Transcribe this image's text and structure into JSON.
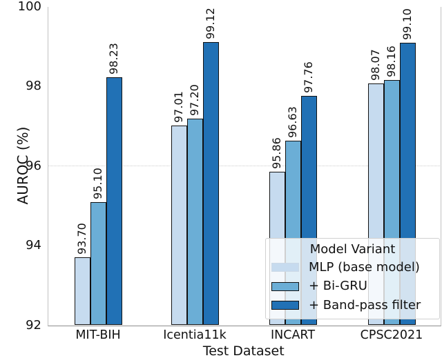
{
  "chart_data": {
    "type": "bar",
    "variant": "grouped-vertical",
    "title": "",
    "xlabel": "Test Dataset",
    "ylabel": "AUROC (%)",
    "categories": [
      "MIT-BIH",
      "Icentia11k",
      "INCART",
      "CPSC2021"
    ],
    "series": [
      {
        "name": "MLP (base model)",
        "color": "#c6dbef",
        "swatch_edge": "#ccd9e6",
        "values": [
          93.7,
          97.01,
          95.86,
          98.07
        ]
      },
      {
        "name": "+ Bi-GRU",
        "color": "#6baed6",
        "swatch_edge": "#111111",
        "values": [
          95.1,
          97.2,
          96.63,
          98.16
        ]
      },
      {
        "name": "+ Band-pass filter",
        "color": "#2171b5",
        "swatch_edge": "#111111",
        "values": [
          98.23,
          99.12,
          97.76,
          99.1
        ]
      }
    ],
    "value_labels": [
      [
        "93.70",
        "97.01",
        "95.86",
        "98.07"
      ],
      [
        "95.10",
        "97.20",
        "96.63",
        "98.16"
      ],
      [
        "98.23",
        "99.12",
        "97.76",
        "99.10"
      ]
    ],
    "ylim": [
      92,
      100
    ],
    "yticks": [
      "92",
      "94",
      "96",
      "98",
      "100"
    ],
    "reference_line_y": 96,
    "grid": "single dotted line at y=96 only",
    "legend": {
      "title": "Model Variant",
      "position": "lower right, semi-transparent over bars"
    },
    "bar_edge_color": "#111111",
    "text_color": "#111111"
  }
}
